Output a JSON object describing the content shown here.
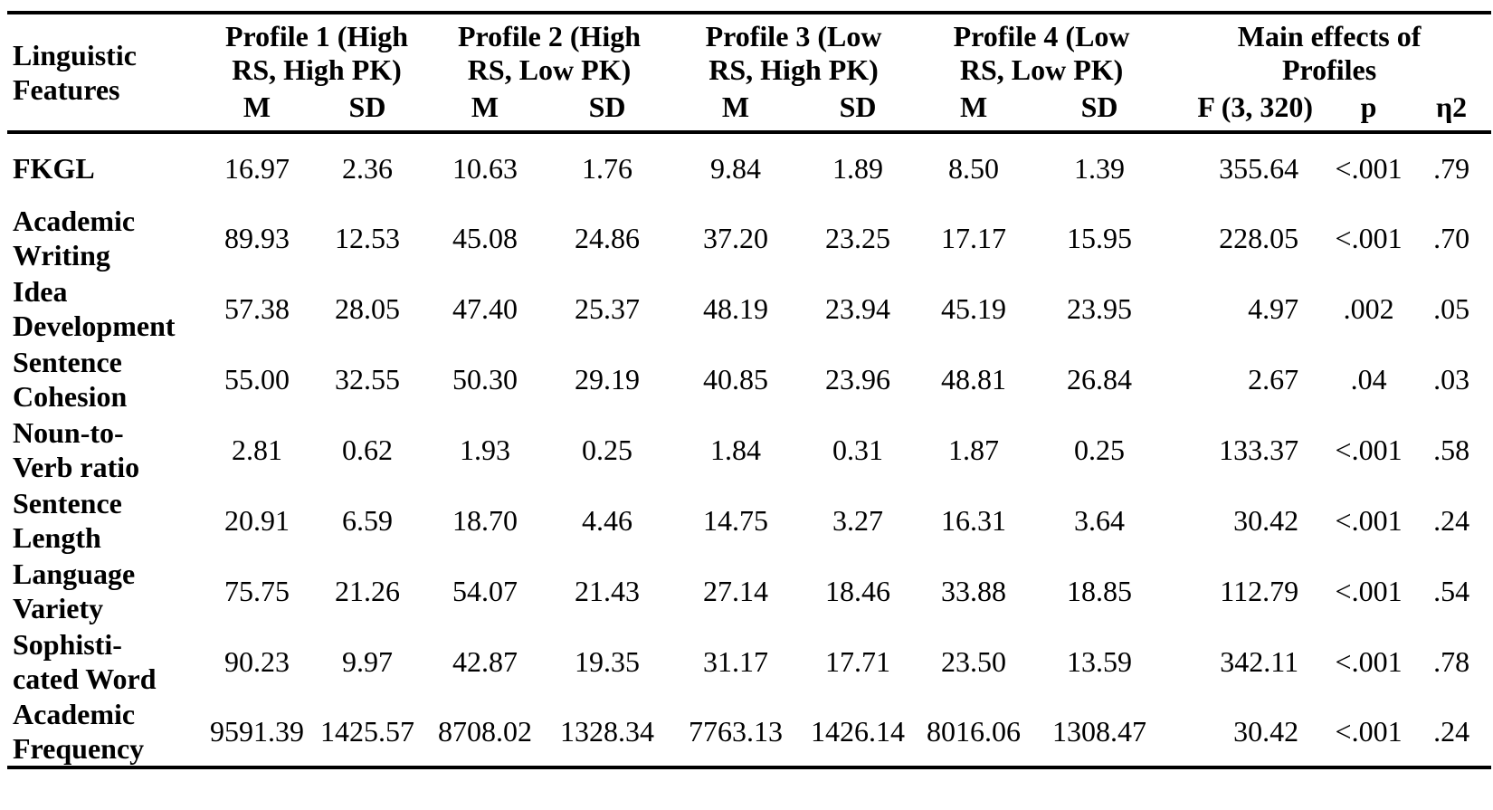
{
  "table": {
    "feature_header": "Linguistic\nFeatures",
    "groups": [
      {
        "label": "Profile 1 (High\nRS, High PK)"
      },
      {
        "label": "Profile 2 (High\nRS, Low PK)"
      },
      {
        "label": "Profile 3 (Low\nRS, High PK)"
      },
      {
        "label": "Profile 4 (Low\nRS, Low PK)"
      }
    ],
    "main_effects_label": "Main effects of\nProfiles",
    "stat_headers": {
      "m": "M",
      "sd": "SD",
      "f": "F (3, 320)",
      "p": "p",
      "eta": "η2"
    },
    "rows": [
      {
        "feature": "FKGL",
        "values": [
          "16.97",
          "2.36",
          "10.63",
          "1.76",
          "9.84",
          "1.89",
          "8.50",
          "1.39",
          "355.64",
          "<.001",
          ".79"
        ]
      },
      {
        "feature": "Academic\nWriting",
        "values": [
          "89.93",
          "12.53",
          "45.08",
          "24.86",
          "37.20",
          "23.25",
          "17.17",
          "15.95",
          "228.05",
          "<.001",
          ".70"
        ]
      },
      {
        "feature": "Idea\nDevelopment",
        "values": [
          "57.38",
          "28.05",
          "47.40",
          "25.37",
          "48.19",
          "23.94",
          "45.19",
          "23.95",
          "4.97",
          ".002",
          ".05"
        ]
      },
      {
        "feature": "Sentence\nCohesion",
        "values": [
          "55.00",
          "32.55",
          "50.30",
          "29.19",
          "40.85",
          "23.96",
          "48.81",
          "26.84",
          "2.67",
          ".04",
          ".03"
        ]
      },
      {
        "feature": "Noun-to-\nVerb ratio",
        "values": [
          "2.81",
          "0.62",
          "1.93",
          "0.25",
          "1.84",
          "0.31",
          "1.87",
          "0.25",
          "133.37",
          "<.001",
          ".58"
        ]
      },
      {
        "feature": "Sentence\nLength",
        "values": [
          "20.91",
          "6.59",
          "18.70",
          "4.46",
          "14.75",
          "3.27",
          "16.31",
          "3.64",
          "30.42",
          "<.001",
          ".24"
        ]
      },
      {
        "feature": "Language\nVariety",
        "values": [
          "75.75",
          "21.26",
          "54.07",
          "21.43",
          "27.14",
          "18.46",
          "33.88",
          "18.85",
          "112.79",
          "<.001",
          ".54"
        ]
      },
      {
        "feature": "Sophisti-\ncated Word",
        "values": [
          "90.23",
          "9.97",
          "42.87",
          "19.35",
          "31.17",
          "17.71",
          "23.50",
          "13.59",
          "342.11",
          "<.001",
          ".78"
        ]
      },
      {
        "feature": "Academic\nFrequency",
        "values": [
          "9591.39",
          "1425.57",
          "8708.02",
          "1328.34",
          "7763.13",
          "1426.14",
          "8016.06",
          "1308.47",
          "30.42",
          "<.001",
          ".24"
        ]
      }
    ]
  }
}
